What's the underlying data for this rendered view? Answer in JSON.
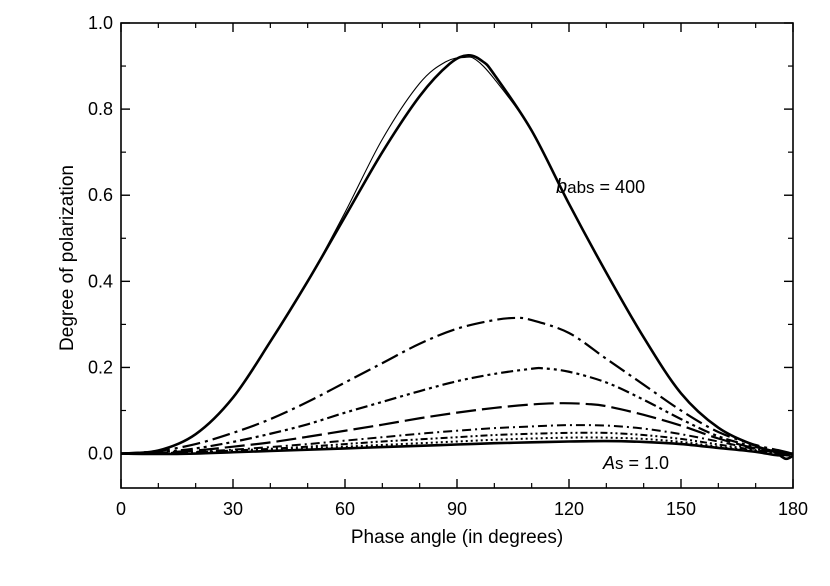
{
  "chart_data": {
    "type": "line",
    "title": "",
    "xlabel": "Phase angle (in degrees)",
    "ylabel": "Degree of polarization",
    "xlim": [
      0,
      180
    ],
    "ylim": [
      -0.08,
      1.0
    ],
    "xticks": [
      0,
      30,
      60,
      90,
      120,
      150,
      180
    ],
    "xtick_labels": [
      "0",
      "30",
      "60",
      "90",
      "120",
      "150",
      "180"
    ],
    "yticks": [
      0.0,
      0.2,
      0.4,
      0.6,
      0.8,
      1.0
    ],
    "ytick_labels": [
      "0.0",
      "0.2",
      "0.4",
      "0.6",
      "0.8",
      "1.0"
    ],
    "grid": false,
    "annotations": {
      "babs": {
        "italic": "b",
        "sub": "abs",
        "rest": " = 400"
      },
      "as": {
        "italic": "A",
        "sub": "s",
        "rest": " = 1.0"
      }
    },
    "series": [
      {
        "name": "thin-solid",
        "color": "#000000",
        "width": 1.1,
        "dash": "",
        "x": [
          0,
          10,
          20,
          30,
          40,
          50,
          60,
          70,
          80,
          87,
          92,
          95,
          100,
          110,
          120,
          130,
          140,
          150,
          160,
          170,
          175,
          178,
          180
        ],
        "y": [
          0,
          0.007,
          0.045,
          0.13,
          0.26,
          0.4,
          0.56,
          0.73,
          0.86,
          0.91,
          0.92,
          0.915,
          0.87,
          0.75,
          0.58,
          0.42,
          0.27,
          0.14,
          0.06,
          0.018,
          0.005,
          -0.005,
          -0.005
        ]
      },
      {
        "name": "thick-solid",
        "color": "#000000",
        "width": 2.6,
        "dash": "",
        "x": [
          0,
          10,
          20,
          30,
          40,
          50,
          60,
          70,
          80,
          88,
          93,
          97,
          100,
          110,
          120,
          130,
          140,
          150,
          160,
          170,
          175,
          178,
          180
        ],
        "y": [
          0,
          0.007,
          0.045,
          0.13,
          0.26,
          0.4,
          0.55,
          0.7,
          0.83,
          0.905,
          0.925,
          0.91,
          0.88,
          0.75,
          0.58,
          0.42,
          0.27,
          0.14,
          0.06,
          0.018,
          0.004,
          -0.012,
          -0.005
        ]
      },
      {
        "name": "dash-dot-long",
        "color": "#000000",
        "width": 2.2,
        "dash": "18,5,3,5",
        "x": [
          0,
          10,
          20,
          30,
          40,
          50,
          60,
          70,
          80,
          90,
          100,
          106,
          110,
          120,
          130,
          140,
          150,
          160,
          170,
          176,
          180
        ],
        "y": [
          0,
          0.006,
          0.022,
          0.048,
          0.08,
          0.12,
          0.165,
          0.21,
          0.255,
          0.29,
          0.31,
          0.315,
          0.31,
          0.28,
          0.22,
          0.16,
          0.1,
          0.05,
          0.02,
          0.008,
          0.0
        ]
      },
      {
        "name": "dash-dot-dot",
        "color": "#000000",
        "width": 2.2,
        "dash": "12,4,3,4,3,4",
        "x": [
          0,
          10,
          20,
          30,
          40,
          50,
          60,
          70,
          80,
          90,
          100,
          110,
          113,
          120,
          130,
          140,
          150,
          160,
          170,
          176,
          180
        ],
        "y": [
          0,
          0.003,
          0.012,
          0.027,
          0.046,
          0.068,
          0.095,
          0.12,
          0.145,
          0.168,
          0.185,
          0.197,
          0.198,
          0.19,
          0.165,
          0.125,
          0.08,
          0.04,
          0.015,
          0.005,
          0.0
        ]
      },
      {
        "name": "long-dash",
        "color": "#000000",
        "width": 2.2,
        "dash": "20,6",
        "x": [
          0,
          10,
          20,
          30,
          40,
          50,
          60,
          70,
          80,
          90,
          100,
          110,
          118,
          125,
          130,
          140,
          150,
          160,
          170,
          176,
          180
        ],
        "y": [
          0,
          0.002,
          0.007,
          0.016,
          0.026,
          0.039,
          0.053,
          0.067,
          0.082,
          0.095,
          0.106,
          0.114,
          0.117,
          0.115,
          0.11,
          0.09,
          0.065,
          0.035,
          0.012,
          0.004,
          0.0
        ]
      },
      {
        "name": "dash-dot-short",
        "color": "#000000",
        "width": 2.0,
        "dash": "9,4,2,4",
        "x": [
          0,
          10,
          20,
          30,
          40,
          50,
          60,
          70,
          80,
          90,
          100,
          110,
          120,
          130,
          140,
          150,
          160,
          170,
          176,
          180
        ],
        "y": [
          0,
          0.001,
          0.004,
          0.009,
          0.015,
          0.022,
          0.03,
          0.038,
          0.046,
          0.053,
          0.059,
          0.063,
          0.066,
          0.065,
          0.058,
          0.045,
          0.028,
          0.01,
          0.003,
          0.0
        ]
      },
      {
        "name": "dash-dot-dot-short",
        "color": "#000000",
        "width": 2.0,
        "dash": "7,3,2,3,2,3",
        "x": [
          0,
          10,
          20,
          30,
          40,
          50,
          60,
          70,
          80,
          90,
          100,
          110,
          120,
          130,
          140,
          150,
          160,
          170,
          176,
          180
        ],
        "y": [
          0,
          0.001,
          0.003,
          0.007,
          0.011,
          0.016,
          0.022,
          0.028,
          0.033,
          0.038,
          0.043,
          0.046,
          0.048,
          0.048,
          0.043,
          0.034,
          0.021,
          0.008,
          0.002,
          0.0
        ]
      },
      {
        "name": "dotted",
        "color": "#000000",
        "width": 2.0,
        "dash": "2,3",
        "x": [
          0,
          10,
          20,
          30,
          40,
          50,
          60,
          70,
          80,
          90,
          100,
          110,
          120,
          130,
          140,
          150,
          160,
          170,
          176,
          180
        ],
        "y": [
          0,
          0.0,
          0.002,
          0.005,
          0.008,
          0.012,
          0.016,
          0.02,
          0.024,
          0.028,
          0.032,
          0.035,
          0.037,
          0.037,
          0.034,
          0.027,
          0.016,
          0.006,
          0.001,
          0.0
        ]
      },
      {
        "name": "bottom-solid",
        "color": "#000000",
        "width": 2.6,
        "dash": "",
        "x": [
          0,
          10,
          20,
          30,
          40,
          50,
          60,
          70,
          80,
          90,
          100,
          110,
          120,
          130,
          140,
          150,
          160,
          170,
          176,
          180
        ],
        "y": [
          0,
          -0.001,
          0.0,
          0.003,
          0.006,
          0.009,
          0.012,
          0.015,
          0.018,
          0.021,
          0.024,
          0.026,
          0.028,
          0.029,
          0.027,
          0.022,
          0.013,
          0.004,
          -0.004,
          0.0
        ]
      }
    ]
  }
}
